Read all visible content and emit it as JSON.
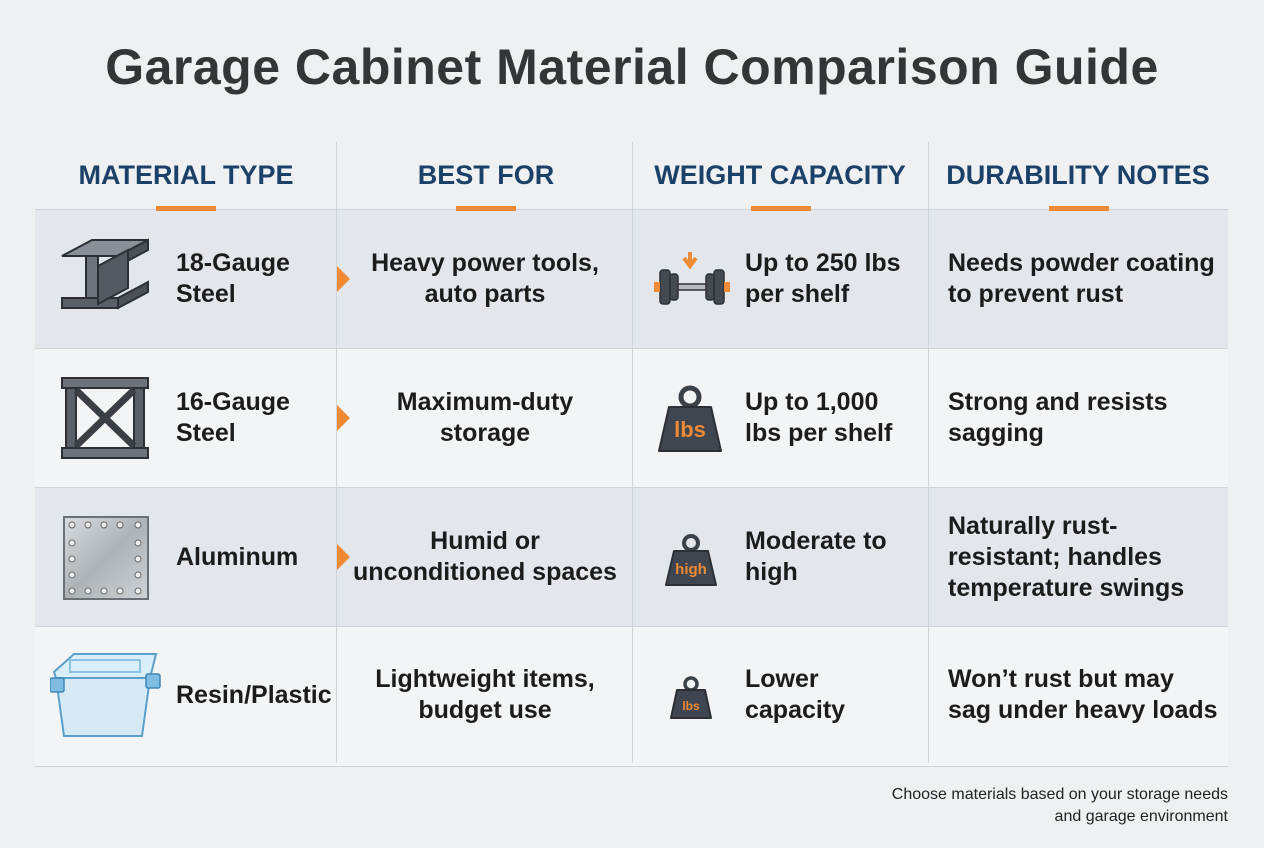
{
  "title": "Garage Cabinet Material Comparison Guide",
  "table": {
    "headers": [
      "MATERIAL TYPE",
      "BEST FOR",
      "WEIGHT CAPACITY",
      "DURABILITY NOTES"
    ],
    "rows": [
      {
        "material": "18-Gauge Steel",
        "best_for": "Heavy power tools, auto parts",
        "weight": "Up to 250 lbs per shelf",
        "durability": "Needs powder coating to prevent rust"
      },
      {
        "material": "16-Gauge Steel",
        "best_for": "Maximum-duty storage",
        "weight_icon": "lbs",
        "weight": "Up to 1,000 lbs per shelf",
        "durability": "Strong and resists sagging"
      },
      {
        "material": "Aluminum",
        "best_for": "Humid or unconditioned spaces",
        "weight_icon": "high",
        "weight": "Moderate to high",
        "durability": "Naturally rust-resistant; handles temperature swings"
      },
      {
        "material": "Resin/Plastic",
        "best_for": "Lightweight items, budget use",
        "weight_icon": "lbs",
        "weight": "Lower capacity",
        "durability": "Won’t rust but may sag under heavy loads"
      }
    ]
  },
  "footnote": "Choose materials based on your storage needs and garage environment"
}
